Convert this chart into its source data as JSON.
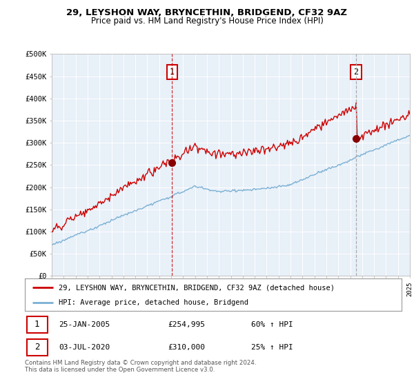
{
  "title_line1": "29, LEYSHON WAY, BRYNCETHIN, BRIDGEND, CF32 9AZ",
  "title_line2": "Price paid vs. HM Land Registry's House Price Index (HPI)",
  "ylabel_ticks": [
    "£0",
    "£50K",
    "£100K",
    "£150K",
    "£200K",
    "£250K",
    "£300K",
    "£350K",
    "£400K",
    "£450K",
    "£500K"
  ],
  "ytick_values": [
    0,
    50000,
    100000,
    150000,
    200000,
    250000,
    300000,
    350000,
    400000,
    450000,
    500000
  ],
  "x_start_year": 1995,
  "x_end_year": 2025,
  "transaction1_date": 2005.07,
  "transaction1_price": 254995,
  "transaction2_date": 2020.5,
  "transaction2_price": 310000,
  "line_color_red": "#cc0000",
  "line_color_blue": "#7ab0d4",
  "vline1_color": "#cc0000",
  "vline1_style": "--",
  "vline2_color": "#aaaaaa",
  "vline2_style": "--",
  "marker_color": "#880000",
  "legend1_label": "29, LEYSHON WAY, BRYNCETHIN, BRIDGEND, CF32 9AZ (detached house)",
  "legend2_label": "HPI: Average price, detached house, Bridgend",
  "table_row1": [
    "1",
    "25-JAN-2005",
    "£254,995",
    "60% ↑ HPI"
  ],
  "table_row2": [
    "2",
    "03-JUL-2020",
    "£310,000",
    "25% ↑ HPI"
  ],
  "footer_text": "Contains HM Land Registry data © Crown copyright and database right 2024.\nThis data is licensed under the Open Government Licence v3.0.",
  "bg_color": "#ffffff",
  "plot_bg_color": "#e8f0f8",
  "grid_color": "#ffffff",
  "label1_text": "1",
  "label2_text": "2",
  "hpi_seed": 123,
  "red_noise_seed": 456
}
